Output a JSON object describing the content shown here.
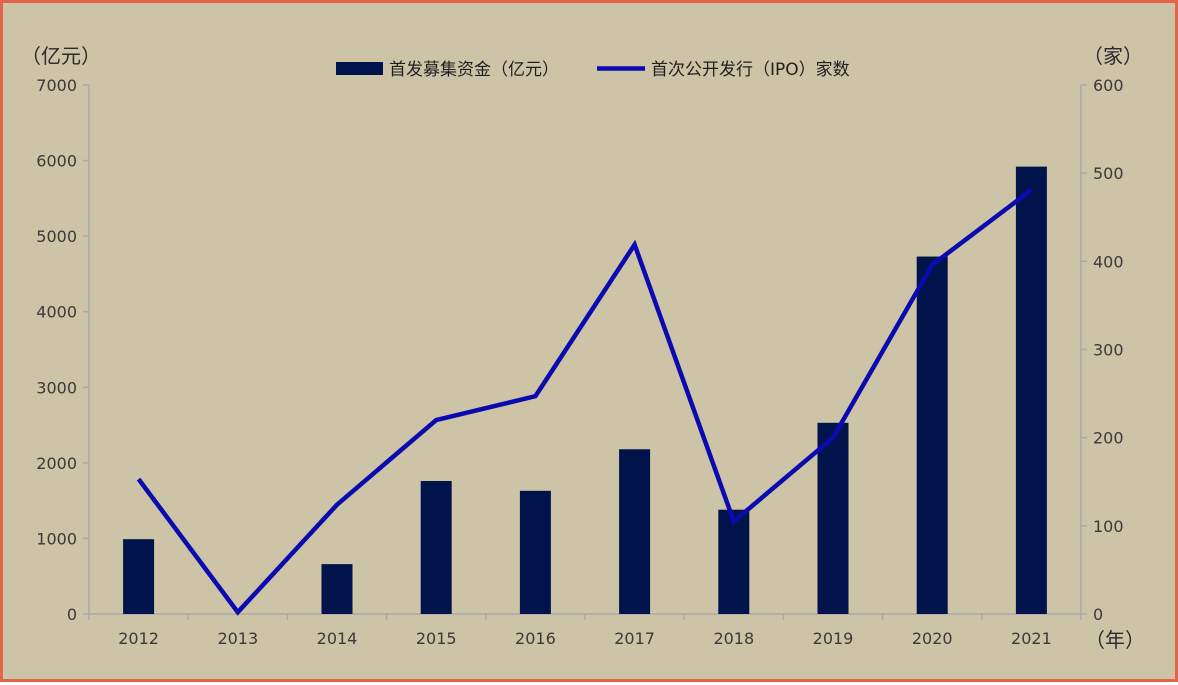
{
  "chart_data": {
    "type": "bar+line",
    "categories": [
      "2012",
      "2013",
      "2014",
      "2015",
      "2016",
      "2017",
      "2018",
      "2019",
      "2020",
      "2021"
    ],
    "series": [
      {
        "name": "首发募集资金（亿元）",
        "type": "bar",
        "axis": "left",
        "color": "#00134a",
        "values": [
          990,
          0,
          660,
          1760,
          1630,
          2180,
          1380,
          2530,
          4730,
          5920
        ]
      },
      {
        "name": "首次公开发行（IPO）家数",
        "type": "line",
        "axis": "right",
        "color": "#0a0ab0",
        "values": [
          153,
          2,
          124,
          220,
          247,
          419,
          105,
          200,
          396,
          481
        ]
      }
    ],
    "left_axis": {
      "unit": "（亿元）",
      "ylim": [
        0,
        7000
      ],
      "ticks": [
        0,
        1000,
        2000,
        3000,
        4000,
        5000,
        6000,
        7000
      ]
    },
    "right_axis": {
      "unit": "（家）",
      "ylim": [
        0,
        600
      ],
      "ticks": [
        0,
        100,
        200,
        300,
        400,
        500,
        600
      ]
    },
    "x_axis": {
      "unit": "（年）"
    },
    "legend": "top-center",
    "grid": false
  }
}
